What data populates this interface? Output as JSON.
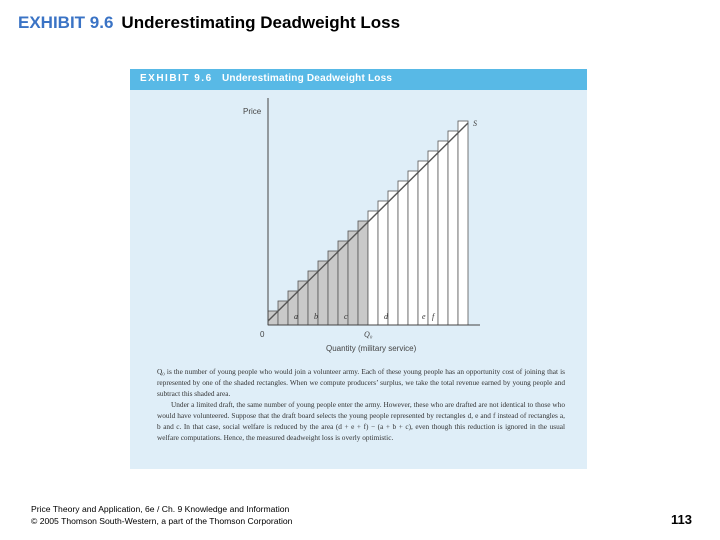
{
  "slide": {
    "exhibit_number": "EXHIBIT 9.6",
    "title": "Underestimating Deadweight Loss"
  },
  "panel": {
    "header_number": "EXHIBIT 9.6",
    "header_title": "Underestimating Deadweight Loss",
    "header_color": "#58b9e6",
    "background_color": "#dfeef8"
  },
  "diagram": {
    "y_axis_label": "Price",
    "x_axis_label": "Quantity (military service)",
    "origin_label": "0",
    "quantity_label": "Q₀",
    "curve_label": "S",
    "rectangle_labels": [
      "a",
      "b",
      "c",
      "d",
      "e",
      "f"
    ],
    "steps_total": 20,
    "shaded_steps": 10
  },
  "caption": {
    "paragraph1": "Q₀ is the number of young people who would join a volunteer army. Each of these young people has an opportunity cost of joining that is represented by one of the shaded rectangles. When we compute producers’ surplus, we take the total revenue earned by young people and subtract this shaded area.",
    "paragraph2": "Under a limited draft, the same number of young people enter the army. However, these who are drafted are not identical to those who would have volunteered. Suppose that the draft board selects the young people represented by rectangles d, e and f instead of rectangles a, b and c. In that case, social welfare is reduced by the area (d + e + f) − (a + b + c), even though this reduction is ignored in the usual welfare computations. Hence, the measured deadweight loss is overly optimistic."
  },
  "footer": {
    "line1": "Price Theory and Application, 6e / Ch. 9 Knowledge and Information",
    "line2": "© 2005 Thomson South-Western, a part of the Thomson Corporation"
  },
  "page_number": "113"
}
